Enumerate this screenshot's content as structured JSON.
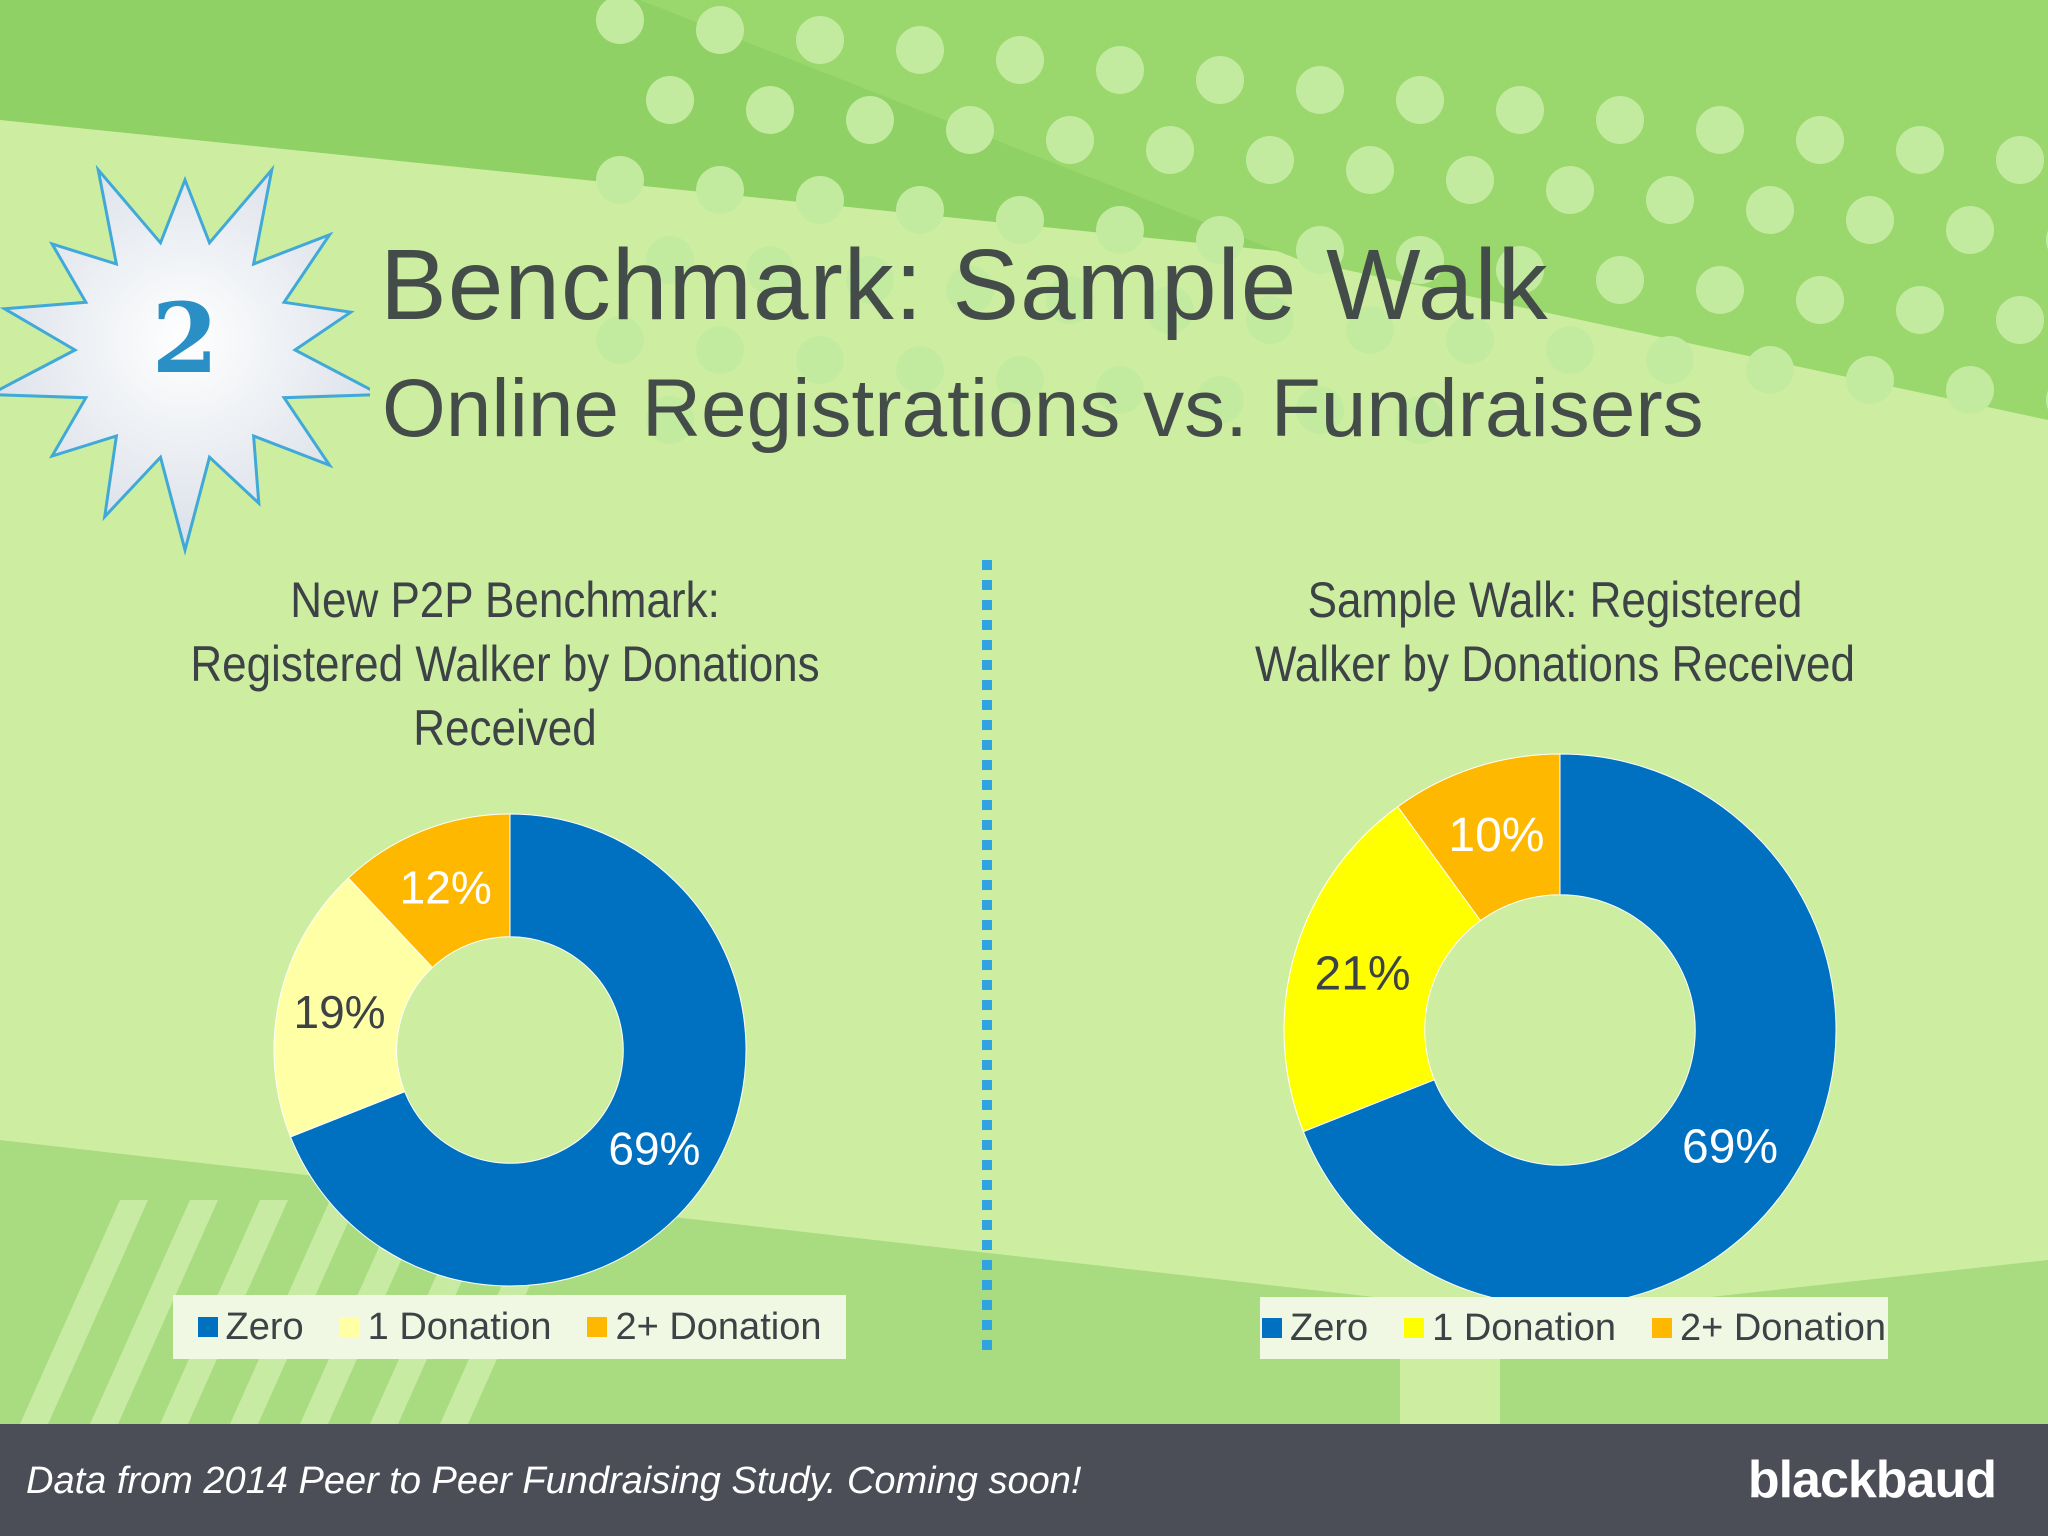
{
  "slide": {
    "badge_number": "2",
    "title": "Benchmark: Sample Walk",
    "subtitle": "Online Registrations vs. Fundraisers",
    "footer_text": "Data from 2014 Peer to Peer Fundraising Study. Coming soon!",
    "logo_text": "blackbaud"
  },
  "chart_data": [
    {
      "type": "pie",
      "variant": "donut",
      "title_lines": [
        "New P2P Benchmark:",
        "Registered Walker by Donations",
        "Received"
      ],
      "categories": [
        "Zero",
        "1 Donation",
        "2+ Donation"
      ],
      "values": [
        69,
        19,
        12
      ],
      "labels": [
        "69%",
        "19%",
        "12%"
      ],
      "colors": [
        "#0070c0",
        "#ffffa5",
        "#ffb800"
      ],
      "label_colors": [
        "#ffffff",
        "#3c4245",
        "#ffffff"
      ],
      "legend": "bottom"
    },
    {
      "type": "pie",
      "variant": "donut",
      "title_lines": [
        "Sample Walk: Registered",
        "Walker by Donations Received"
      ],
      "categories": [
        "Zero",
        "1 Donation",
        "2+ Donation"
      ],
      "values": [
        69,
        21,
        10
      ],
      "labels": [
        "69%",
        "21%",
        "10%"
      ],
      "colors": [
        "#0070c0",
        "#ffff00",
        "#ffb800"
      ],
      "label_colors": [
        "#ffffff",
        "#3c4245",
        "#ffffff"
      ],
      "legend": "bottom"
    }
  ]
}
